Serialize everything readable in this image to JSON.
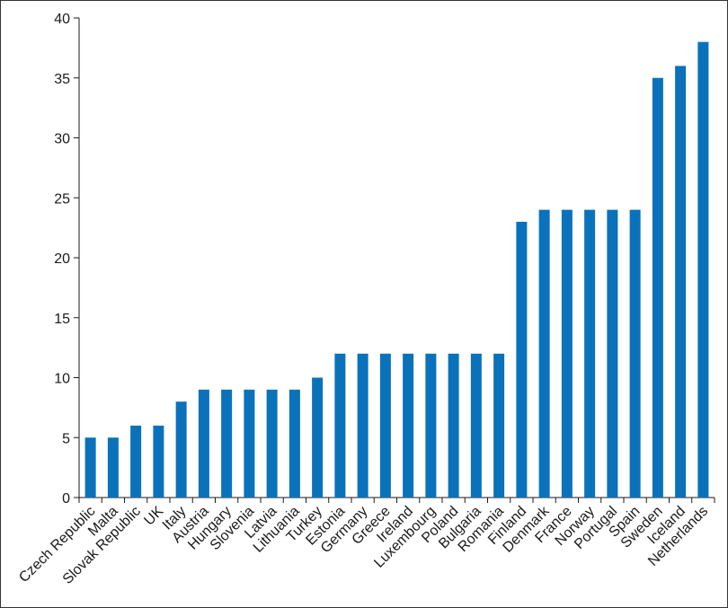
{
  "chart_data": {
    "type": "bar",
    "title": "",
    "xlabel": "",
    "ylabel": "",
    "ylim": [
      0,
      40
    ],
    "yticks": [
      0,
      5,
      10,
      15,
      20,
      25,
      30,
      35,
      40
    ],
    "ytick_labels": [
      "0",
      "5",
      "10",
      "15",
      "20",
      "25",
      "30",
      "35",
      "40"
    ],
    "grid": false,
    "bar_color": "#0a72ba",
    "categories": [
      "Czech Republic",
      "Malta",
      "Slovak Republic",
      "UK",
      "Italy",
      "Austria",
      "Hungary",
      "Slovenia",
      "Latvia",
      "Lithuania",
      "Turkey",
      "Estonia",
      "Germany",
      "Greece",
      "Ireland",
      "Luxembourg",
      "Poland",
      "Bulgaria",
      "Romania",
      "Finland",
      "Denmark",
      "France",
      "Norway",
      "Portugal",
      "Spain",
      "Sweden",
      "Iceland",
      "Netherlands"
    ],
    "values": [
      5,
      5,
      6,
      6,
      8,
      9,
      9,
      9,
      9,
      9,
      10,
      12,
      12,
      12,
      12,
      12,
      12,
      12,
      12,
      23,
      24,
      24,
      24,
      24,
      24,
      35,
      36,
      38
    ]
  }
}
